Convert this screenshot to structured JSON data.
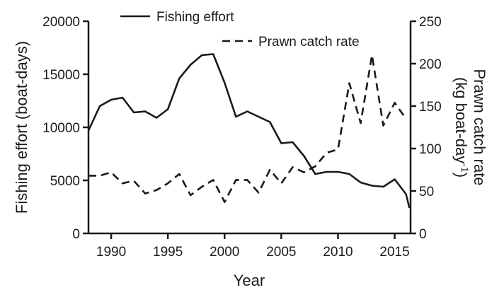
{
  "chart_data": {
    "type": "line",
    "xlabel": "Year",
    "ylabel_left": "Fishing effort (boat-days)",
    "ylabel_right_line1": "Prawn catch rate",
    "ylabel_right_line2_prefix": "(kg boat-day",
    "ylabel_right_superscript": "-1",
    "ylabel_right_line2_suffix": ")",
    "xlim": [
      1988,
      2016.4
    ],
    "ylim_left": [
      0,
      20000
    ],
    "ylim_right": [
      0,
      250
    ],
    "x_ticks": [
      1990,
      1995,
      2000,
      2005,
      2010,
      2015
    ],
    "y_left_ticks": [
      0,
      5000,
      10000,
      15000,
      20000
    ],
    "y_right_ticks": [
      0,
      50,
      100,
      150,
      200,
      250
    ],
    "legend_position": "top",
    "grid": false,
    "series": [
      {
        "name": "Fishing effort",
        "axis": "left",
        "style": "solid",
        "x": [
          1988,
          1989,
          1990,
          1991,
          1992,
          1993,
          1994,
          1995,
          1996,
          1997,
          1998,
          1999,
          2000,
          2001,
          2002,
          2003,
          2004,
          2005,
          2006,
          2007,
          2008,
          2009,
          2010,
          2011,
          2012,
          2013,
          2014,
          2015,
          2016,
          2016.3
        ],
        "values": [
          9700,
          12000,
          12600,
          12800,
          11400,
          11500,
          10900,
          11700,
          14600,
          15900,
          16800,
          16900,
          14200,
          11000,
          11500,
          11000,
          10500,
          8500,
          8600,
          7300,
          5600,
          5800,
          5800,
          5600,
          4800,
          4500,
          4400,
          5100,
          3700,
          2400
        ]
      },
      {
        "name": "Prawn catch rate",
        "axis": "right",
        "style": "dashed",
        "x": [
          1988,
          1989,
          1990,
          1991,
          1992,
          1993,
          1994,
          1995,
          1996,
          1997,
          1998,
          1999,
          2000,
          2001,
          2002,
          2003,
          2004,
          2005,
          2006,
          2007,
          2008,
          2009,
          2010,
          2011,
          2012,
          2013,
          2014,
          2015,
          2016
        ],
        "values": [
          68,
          68,
          72,
          59,
          62,
          47,
          51,
          59,
          70,
          45,
          55,
          63,
          37,
          63,
          63,
          48,
          75,
          59,
          78,
          72,
          79,
          95,
          99,
          177,
          130,
          210,
          127,
          154,
          135
        ]
      }
    ]
  }
}
